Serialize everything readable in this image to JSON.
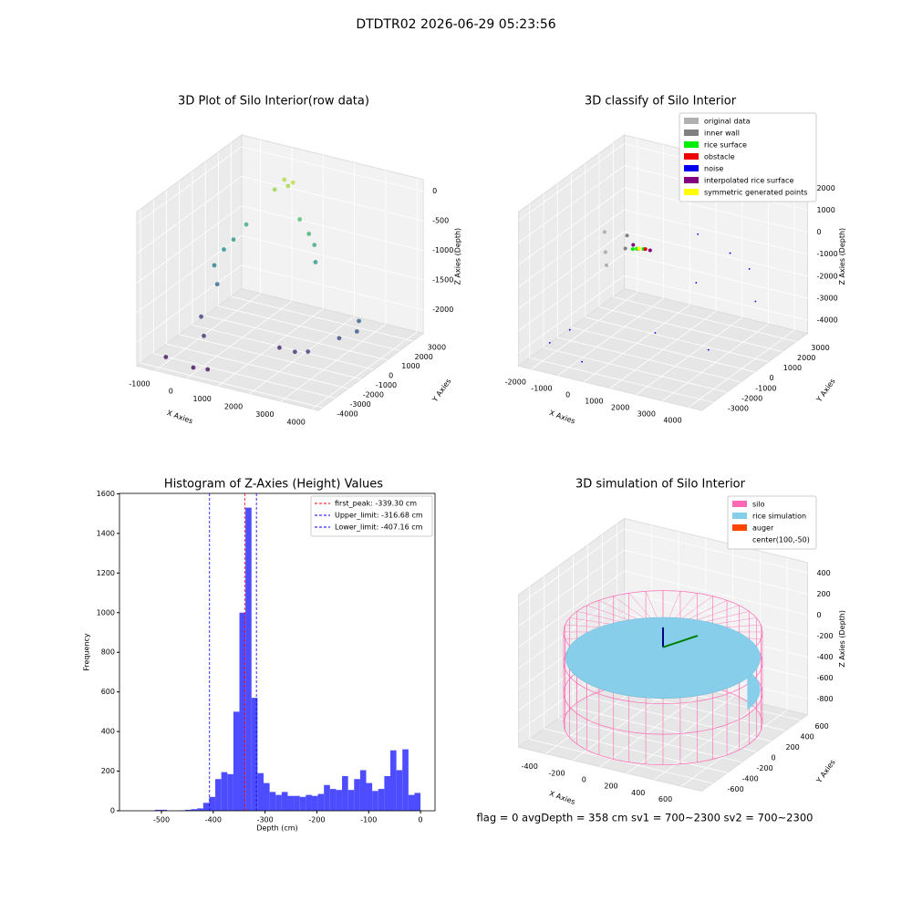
{
  "title": "DTDTR02 2026-06-29 05:23:56",
  "footer": "flag = 0     avgDepth = 358 cm  sv1 = 700~2300  sv2 = 700~2300",
  "chart_data": [
    {
      "type": "scatter3d",
      "title": "3D Plot of Silo Interior(row data)",
      "xlabel": "X Axies",
      "ylabel": "Y Axies",
      "zlabel": "Z Axies (Depth)",
      "cmap": "viridis",
      "xlim": [
        -1600,
        4200
      ],
      "xticks": [
        -1000,
        0,
        1000,
        2000,
        3000,
        4000
      ],
      "ylim": [
        -4300,
        3800
      ],
      "yticks": [
        -4000,
        -3000,
        -2000,
        -1000,
        0,
        1000,
        2000,
        3000
      ],
      "zlim": [
        -2400,
        200
      ],
      "zticks": [
        -2000,
        -1500,
        -1000,
        -500,
        0
      ],
      "x": [
        300,
        500,
        700,
        200,
        -500,
        -700,
        -800,
        1000,
        1500,
        1800,
        2000,
        -900,
        -600,
        3800,
        3900,
        3500,
        -700,
        -200,
        1800,
        2500,
        3000,
        -1000,
        0,
        500
      ],
      "y": [
        2500,
        2300,
        2200,
        2000,
        1500,
        1000,
        500,
        2000,
        1500,
        1200,
        800,
        0,
        -500,
        -200,
        -600,
        -1000,
        -1500,
        -2500,
        -1500,
        -2000,
        -2200,
        -3500,
        -3800,
        -3900
      ],
      "z": [
        -100,
        -150,
        -50,
        -200,
        -800,
        -1000,
        -1100,
        -600,
        -700,
        -800,
        -1000,
        -1300,
        -1500,
        -1600,
        -1700,
        -1800,
        -1900,
        -2000,
        -2100,
        -2000,
        -1900,
        -2300,
        -2300,
        -2250
      ]
    },
    {
      "type": "scatter3d",
      "title": "3D classify of Silo Interior",
      "xlabel": "X Axies",
      "ylabel": "Y Axies",
      "zlabel": "Z Axies (Depth)",
      "xlim": [
        -2500,
        4500
      ],
      "xticks": [
        -2000,
        -1000,
        0,
        1000,
        2000,
        3000,
        4000
      ],
      "ylim": [
        -3800,
        3800
      ],
      "yticks": [
        -3000,
        -2000,
        -1000,
        0,
        1000,
        2000,
        3000
      ],
      "zlim": [
        -4600,
        2400
      ],
      "zticks": [
        -4000,
        -3000,
        -2000,
        -1000,
        0,
        1000,
        2000
      ],
      "series": [
        {
          "name": "original data",
          "color": "#b0b0b0",
          "x": [
            -1500,
            -1200,
            -1000
          ],
          "y": [
            500,
            0,
            -300
          ],
          "z": [
            -200,
            -800,
            -1200
          ]
        },
        {
          "name": "inner wall",
          "color": "#808080",
          "x": [
            -800,
            -600
          ],
          "y": [
            800,
            300
          ],
          "z": [
            -300,
            -600
          ]
        },
        {
          "name": "rice surface",
          "color": "#00ee00",
          "x": [
            0,
            200,
            -100
          ],
          "y": [
            0,
            100,
            -100
          ],
          "z": [
            -300,
            -300,
            -300
          ]
        },
        {
          "name": "obstacle",
          "color": "#ee0000",
          "x": [
            100,
            300
          ],
          "y": [
            -50,
            50
          ],
          "z": [
            -250,
            -250
          ]
        },
        {
          "name": "noise",
          "color": "#0000ee",
          "x": [
            -2000,
            -1500,
            1000,
            2500,
            3500,
            3000,
            1500,
            -500,
            2000,
            4000
          ],
          "y": [
            -2500,
            -2000,
            2500,
            2000,
            1500,
            -500,
            -1500,
            -3000,
            500,
            1000
          ],
          "z": [
            -4000,
            -3500,
            -500,
            -700,
            -900,
            -3800,
            -3000,
            -4200,
            -1500,
            -2000
          ]
        },
        {
          "name": "interpolated rice surface",
          "color": "#800080",
          "x": [
            400,
            -300
          ],
          "y": [
            200,
            300
          ],
          "z": [
            -350,
            -350
          ]
        },
        {
          "name": "symmetric generated points",
          "color": "#ffff00",
          "x": [
            50
          ],
          "y": [
            50
          ],
          "z": [
            -300
          ]
        }
      ]
    },
    {
      "type": "histogram",
      "title": "Histogram of Z-Axies (Height) Values",
      "xlabel": "Depth (cm)",
      "ylabel": "Frequency",
      "color": "#4d4dff",
      "xlim": [
        -581,
        28
      ],
      "xticks": [
        -500,
        -400,
        -300,
        -200,
        -100,
        0
      ],
      "ylim": [
        0,
        1602
      ],
      "yticks": [
        0,
        200,
        400,
        600,
        800,
        1000,
        1200,
        1400,
        1600
      ],
      "bins": [
        -512.6,
        -500.95,
        -489.3,
        -477.65,
        -466.0,
        -454.35,
        -442.7,
        -431.05,
        -419.4,
        -407.75,
        -396.1,
        -384.45,
        -372.8,
        -361.15,
        -349.5,
        -337.85,
        -326.2,
        -314.55,
        -302.9,
        -291.25,
        -279.6,
        -267.95,
        -256.3,
        -244.65,
        -233.0,
        -221.35,
        -209.7,
        -198.05,
        -186.4,
        -174.75,
        -163.1,
        -151.45,
        -139.8,
        -128.15,
        -116.5,
        -104.85,
        -93.2,
        -81.55,
        -69.9,
        -58.25,
        -46.6,
        -34.95,
        -23.3,
        -11.65,
        0
      ],
      "values": [
        5,
        5,
        0,
        0,
        2,
        5,
        8,
        12,
        40,
        70,
        160,
        195,
        185,
        500,
        1000,
        1530,
        570,
        190,
        140,
        95,
        80,
        95,
        75,
        75,
        70,
        80,
        75,
        85,
        130,
        110,
        105,
        175,
        105,
        160,
        205,
        140,
        100,
        110,
        175,
        305,
        205,
        310,
        80,
        90
      ],
      "vlines": [
        {
          "label": "first_peak: -339.30 cm",
          "value": -339.3,
          "color": "#ff0000"
        },
        {
          "label": "Upper_limit: -316.68 cm",
          "value": -316.68,
          "color": "#0000ff"
        },
        {
          "label": "Lower_limit: -407.16 cm",
          "value": -407.16,
          "color": "#0000ff"
        }
      ]
    },
    {
      "type": "silo3d",
      "title": "3D simulation of Silo Interior",
      "xlabel": "X Axies",
      "ylabel": "Y Axies",
      "zlabel": "Z Axies (Depth)",
      "xlim": [
        -600,
        750
      ],
      "xticks": [
        -400,
        -200,
        0,
        200,
        400,
        600
      ],
      "ylim": [
        -750,
        700
      ],
      "yticks": [
        -600,
        -400,
        -200,
        0,
        200,
        400,
        600
      ],
      "zlim": [
        -950,
        500
      ],
      "zticks": [
        -800,
        -600,
        -400,
        -200,
        0,
        200,
        400
      ],
      "legend": [
        {
          "name": "silo",
          "color": "#ff69b4"
        },
        {
          "name": "rice simulation",
          "color": "#87ceeb"
        },
        {
          "name": "auger",
          "color": "#ff4500"
        },
        {
          "name": "center(100,-50)",
          "color": "none"
        }
      ]
    }
  ]
}
